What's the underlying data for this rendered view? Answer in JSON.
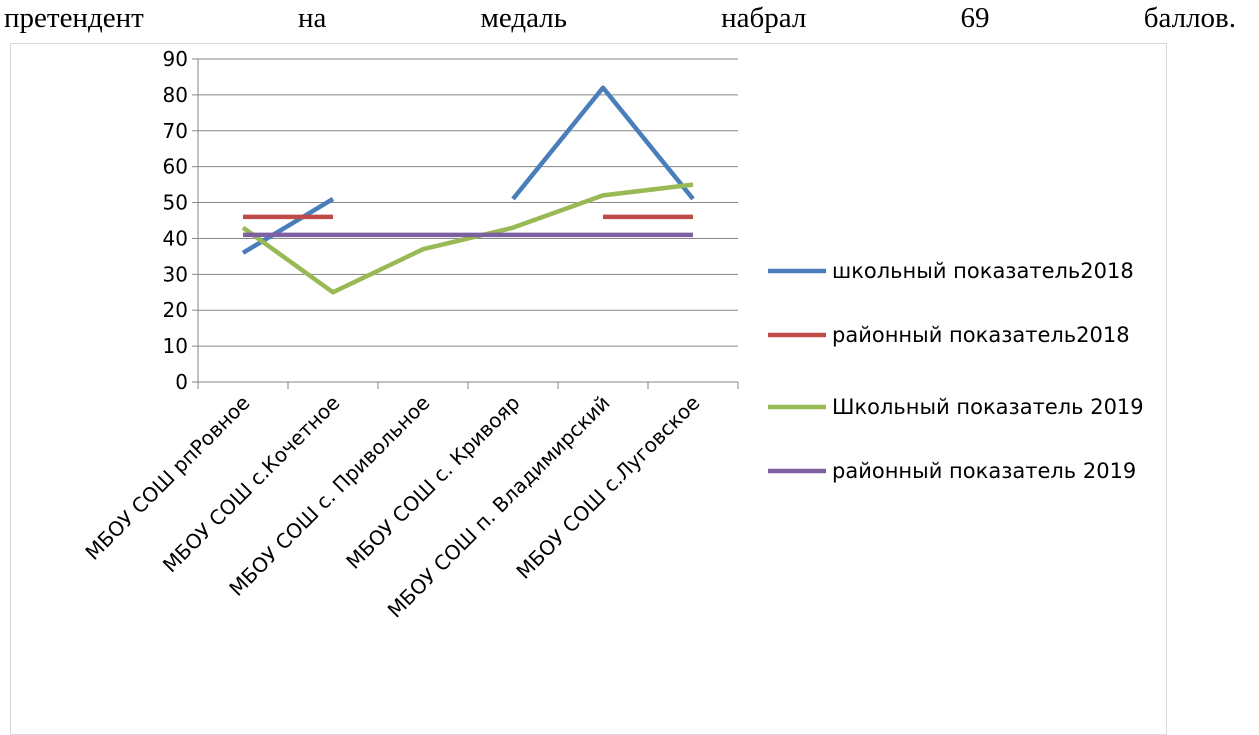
{
  "text_words": [
    "претендент",
    "на",
    "медаль",
    "набрал",
    "69",
    "баллов."
  ],
  "chart_data": {
    "type": "line",
    "categories": [
      "МБОУ СОШ рпРовное",
      "МБОУ СОШ с.Кочетное",
      "МБОУ СОШ с. Привольное",
      "МБОУ СОШ с. Кривояр",
      "МБОУ СОШ п. Владимирский",
      "МБОУ СОШ с.Луговское"
    ],
    "series": [
      {
        "name": "школьный показатель2018",
        "color": "#4a7ebb",
        "values": [
          36,
          51,
          null,
          51,
          82,
          51
        ]
      },
      {
        "name": "районный показатель2018",
        "color": "#be4b48",
        "values": [
          46,
          46,
          null,
          null,
          46,
          46
        ]
      },
      {
        "name": "Школьный показатель 2019",
        "color": "#98b954",
        "values": [
          43,
          25,
          37,
          43,
          52,
          55
        ]
      },
      {
        "name": "районный показатель 2019",
        "color": "#7d60a0",
        "values": [
          41,
          41,
          41,
          41,
          41,
          41
        ]
      }
    ],
    "ylim": [
      0,
      90
    ],
    "yticks": [
      0,
      10,
      20,
      30,
      40,
      50,
      60,
      70,
      80,
      90
    ],
    "grid": true,
    "legend": "right"
  }
}
